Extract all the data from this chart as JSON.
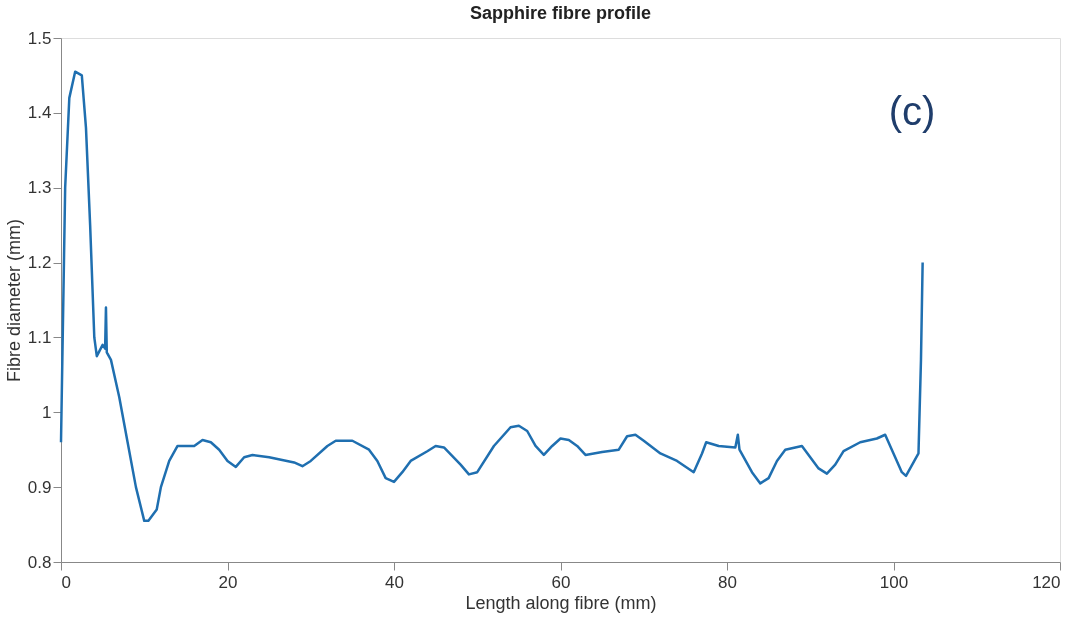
{
  "chart_data": {
    "type": "line",
    "title": "Sapphire fibre profile",
    "xlabel": "Length along fibre (mm)",
    "ylabel": "Fibre diameter (mm)",
    "annotations": [
      "(c)"
    ],
    "xlim": [
      0,
      120
    ],
    "xticks": [
      0,
      20,
      40,
      60,
      80,
      100,
      120
    ],
    "ylim": [
      0.8,
      1.5
    ],
    "yticks": [
      {
        "value": 0.8,
        "label": "0.8"
      },
      {
        "value": 0.9,
        "label": "0.9"
      },
      1,
      1.1,
      1.2,
      1.3,
      1.4,
      1.5
    ],
    "grid": false,
    "marker": "none",
    "line_style": "solid",
    "series": [
      {
        "color": "#1f6fb0",
        "x": [
          0,
          0.5,
          1,
          1.7,
          2.5,
          3,
          3.5,
          4,
          4.3,
          5,
          5.3,
          5.4,
          5.5,
          6,
          7,
          8,
          9,
          10,
          10.5,
          11.5,
          12,
          13,
          14,
          15,
          16,
          17,
          18,
          19,
          20,
          21,
          22,
          23,
          25,
          28,
          29,
          30,
          32,
          33,
          35,
          37,
          38,
          39,
          40,
          41,
          42,
          44,
          45,
          46,
          48,
          49,
          50,
          52,
          54,
          55,
          56,
          57,
          58,
          59,
          60,
          61,
          62,
          63,
          65,
          67,
          68,
          69,
          70,
          72,
          74,
          76,
          77,
          77.5,
          79,
          81,
          81.3,
          81.5,
          82,
          83,
          84,
          85,
          86,
          87,
          89,
          90,
          91,
          92,
          93,
          94,
          96,
          98,
          99,
          100,
          101,
          101.5,
          102.5,
          103,
          103.3,
          103.5
        ],
        "values": [
          0.96,
          1.3,
          1.42,
          1.455,
          1.45,
          1.38,
          1.25,
          1.1,
          1.075,
          1.09,
          1.085,
          1.14,
          1.08,
          1.07,
          1.02,
          0.96,
          0.9,
          0.855,
          0.855,
          0.87,
          0.9,
          0.935,
          0.955,
          0.955,
          0.955,
          0.963,
          0.96,
          0.95,
          0.935,
          0.927,
          0.94,
          0.943,
          0.94,
          0.933,
          0.928,
          0.935,
          0.955,
          0.962,
          0.962,
          0.95,
          0.935,
          0.912,
          0.907,
          0.92,
          0.935,
          0.948,
          0.955,
          0.953,
          0.93,
          0.917,
          0.92,
          0.955,
          0.98,
          0.982,
          0.975,
          0.955,
          0.943,
          0.955,
          0.965,
          0.963,
          0.955,
          0.943,
          0.947,
          0.95,
          0.968,
          0.97,
          0.962,
          0.945,
          0.935,
          0.92,
          0.945,
          0.96,
          0.955,
          0.953,
          0.97,
          0.95,
          0.94,
          0.92,
          0.905,
          0.912,
          0.935,
          0.95,
          0.955,
          0.94,
          0.925,
          0.918,
          0.93,
          0.948,
          0.96,
          0.965,
          0.97,
          0.945,
          0.92,
          0.915,
          0.935,
          0.945,
          1.07,
          1.2
        ]
      }
    ]
  }
}
